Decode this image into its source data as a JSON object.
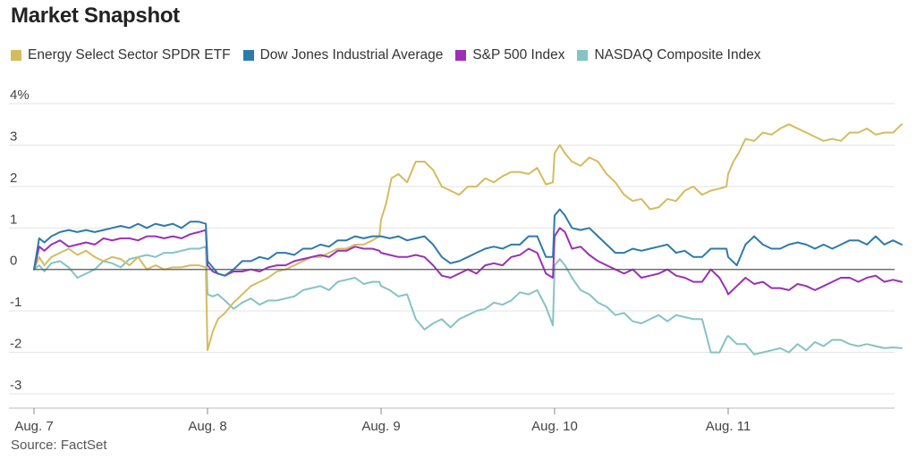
{
  "title": "Market Snapshot",
  "source": "Source: FactSet",
  "chart_data": {
    "type": "line",
    "title": "Market Snapshot",
    "xlabel": "",
    "ylabel": "",
    "ylim": [
      -3.3,
      4.2
    ],
    "y_ticks": [
      {
        "value": 4,
        "label": "4%"
      },
      {
        "value": 3,
        "label": "3"
      },
      {
        "value": 2,
        "label": "2"
      },
      {
        "value": 1,
        "label": "1"
      },
      {
        "value": 0,
        "label": "0"
      },
      {
        "value": -1,
        "label": "-1"
      },
      {
        "value": -2,
        "label": "-2"
      },
      {
        "value": -3,
        "label": "-3"
      }
    ],
    "x_ticks": [
      {
        "day": 0,
        "label": "Aug. 7"
      },
      {
        "day": 1,
        "label": "Aug. 8"
      },
      {
        "day": 2,
        "label": "Aug. 9"
      },
      {
        "day": 3,
        "label": "Aug. 10"
      },
      {
        "day": 4,
        "label": "Aug. 11"
      }
    ],
    "x_range": [
      0,
      5
    ],
    "grid": true,
    "legend_position": "top",
    "series": [
      {
        "name": "Energy Select Sector SPDR ETF",
        "color": "#d4bc5e",
        "x": [
          0,
          0.03,
          0.06,
          0.1,
          0.15,
          0.2,
          0.25,
          0.3,
          0.35,
          0.4,
          0.45,
          0.5,
          0.55,
          0.6,
          0.65,
          0.7,
          0.75,
          0.8,
          0.85,
          0.9,
          0.95,
          0.99,
          1.0,
          1.03,
          1.06,
          1.1,
          1.15,
          1.2,
          1.25,
          1.3,
          1.35,
          1.4,
          1.45,
          1.5,
          1.55,
          1.6,
          1.65,
          1.7,
          1.75,
          1.8,
          1.85,
          1.9,
          1.95,
          1.99,
          2.0,
          2.03,
          2.06,
          2.1,
          2.15,
          2.2,
          2.25,
          2.3,
          2.35,
          2.4,
          2.45,
          2.5,
          2.55,
          2.6,
          2.65,
          2.7,
          2.75,
          2.8,
          2.85,
          2.9,
          2.95,
          2.99,
          3.0,
          3.03,
          3.06,
          3.1,
          3.15,
          3.2,
          3.25,
          3.3,
          3.35,
          3.4,
          3.45,
          3.5,
          3.55,
          3.6,
          3.65,
          3.7,
          3.75,
          3.8,
          3.85,
          3.9,
          3.95,
          3.99,
          4.0,
          4.03,
          4.06,
          4.1,
          4.15,
          4.2,
          4.25,
          4.3,
          4.35,
          4.4,
          4.45,
          4.5,
          4.55,
          4.6,
          4.65,
          4.7,
          4.75,
          4.8,
          4.85,
          4.9,
          4.95,
          5.0
        ],
        "values": [
          0,
          0.3,
          0.1,
          0.3,
          0.4,
          0.5,
          0.35,
          0.45,
          0.3,
          0.2,
          0.3,
          0.25,
          0.1,
          0.3,
          0.0,
          0.1,
          0.0,
          0.05,
          0.05,
          0.1,
          0.1,
          0.05,
          -1.95,
          -1.5,
          -1.2,
          -1.05,
          -0.8,
          -0.6,
          -0.4,
          -0.3,
          -0.2,
          -0.05,
          0.0,
          0.1,
          0.2,
          0.3,
          0.3,
          0.4,
          0.5,
          0.5,
          0.6,
          0.6,
          0.7,
          0.8,
          1.2,
          1.6,
          2.2,
          2.3,
          2.1,
          2.6,
          2.6,
          2.4,
          2.0,
          1.9,
          1.8,
          2.0,
          2.0,
          2.2,
          2.1,
          2.25,
          2.35,
          2.35,
          2.3,
          2.45,
          2.05,
          2.1,
          2.8,
          3.0,
          2.8,
          2.6,
          2.5,
          2.7,
          2.6,
          2.3,
          2.1,
          1.8,
          1.65,
          1.7,
          1.45,
          1.5,
          1.7,
          1.65,
          1.9,
          2.0,
          1.8,
          1.9,
          1.95,
          2.0,
          2.3,
          2.6,
          2.8,
          3.15,
          3.1,
          3.3,
          3.25,
          3.4,
          3.5,
          3.4,
          3.3,
          3.2,
          3.1,
          3.15,
          3.1,
          3.3,
          3.3,
          3.4,
          3.25,
          3.3,
          3.3,
          3.5
        ]
      },
      {
        "name": "Dow Jones Industrial Average",
        "color": "#2e7aaa",
        "x": [
          0,
          0.03,
          0.06,
          0.1,
          0.15,
          0.2,
          0.25,
          0.3,
          0.35,
          0.4,
          0.45,
          0.5,
          0.55,
          0.6,
          0.65,
          0.7,
          0.75,
          0.8,
          0.85,
          0.9,
          0.95,
          0.99,
          1.0,
          1.03,
          1.06,
          1.1,
          1.15,
          1.2,
          1.25,
          1.3,
          1.35,
          1.4,
          1.45,
          1.5,
          1.55,
          1.6,
          1.65,
          1.7,
          1.75,
          1.8,
          1.85,
          1.9,
          1.95,
          1.99,
          2.0,
          2.05,
          2.1,
          2.15,
          2.2,
          2.25,
          2.3,
          2.35,
          2.4,
          2.45,
          2.5,
          2.55,
          2.6,
          2.65,
          2.7,
          2.75,
          2.8,
          2.85,
          2.9,
          2.95,
          2.99,
          3.0,
          3.03,
          3.06,
          3.1,
          3.15,
          3.2,
          3.25,
          3.3,
          3.35,
          3.4,
          3.45,
          3.5,
          3.55,
          3.6,
          3.65,
          3.7,
          3.75,
          3.8,
          3.85,
          3.9,
          3.95,
          3.99,
          4.0,
          4.05,
          4.1,
          4.15,
          4.2,
          4.25,
          4.3,
          4.35,
          4.4,
          4.45,
          4.5,
          4.55,
          4.6,
          4.65,
          4.7,
          4.75,
          4.8,
          4.85,
          4.9,
          4.95,
          5.0
        ],
        "values": [
          0,
          0.75,
          0.65,
          0.8,
          0.9,
          0.95,
          0.9,
          0.95,
          0.9,
          0.95,
          1.0,
          1.05,
          1.0,
          1.1,
          1.0,
          1.1,
          1.05,
          1.1,
          1.0,
          1.15,
          1.15,
          1.1,
          0.2,
          0.05,
          -0.1,
          -0.15,
          0.0,
          0.2,
          0.2,
          0.3,
          0.25,
          0.4,
          0.4,
          0.35,
          0.5,
          0.5,
          0.6,
          0.55,
          0.7,
          0.7,
          0.8,
          0.75,
          0.8,
          0.8,
          0.8,
          0.75,
          0.8,
          0.7,
          0.75,
          0.8,
          0.6,
          0.3,
          0.15,
          0.2,
          0.3,
          0.4,
          0.5,
          0.55,
          0.5,
          0.6,
          0.6,
          0.8,
          0.8,
          0.3,
          0.3,
          1.3,
          1.45,
          1.3,
          1.0,
          0.95,
          1.0,
          0.8,
          0.6,
          0.4,
          0.4,
          0.5,
          0.45,
          0.5,
          0.55,
          0.6,
          0.4,
          0.45,
          0.3,
          0.3,
          0.5,
          0.5,
          0.5,
          0.3,
          0.1,
          0.6,
          0.8,
          0.6,
          0.5,
          0.5,
          0.6,
          0.65,
          0.6,
          0.5,
          0.6,
          0.5,
          0.6,
          0.7,
          0.7,
          0.6,
          0.8,
          0.6,
          0.7,
          0.6
        ]
      },
      {
        "name": "S&P 500 Index",
        "color": "#9b30b5",
        "x": [
          0,
          0.03,
          0.06,
          0.1,
          0.15,
          0.2,
          0.25,
          0.3,
          0.35,
          0.4,
          0.45,
          0.5,
          0.55,
          0.6,
          0.65,
          0.7,
          0.75,
          0.8,
          0.85,
          0.9,
          0.95,
          0.99,
          1.0,
          1.03,
          1.06,
          1.1,
          1.15,
          1.2,
          1.25,
          1.3,
          1.35,
          1.4,
          1.45,
          1.5,
          1.55,
          1.6,
          1.65,
          1.7,
          1.75,
          1.8,
          1.85,
          1.9,
          1.95,
          1.99,
          2.0,
          2.05,
          2.1,
          2.15,
          2.2,
          2.25,
          2.3,
          2.35,
          2.4,
          2.45,
          2.5,
          2.55,
          2.6,
          2.65,
          2.7,
          2.75,
          2.8,
          2.85,
          2.9,
          2.95,
          2.99,
          3.0,
          3.03,
          3.06,
          3.1,
          3.15,
          3.2,
          3.25,
          3.3,
          3.35,
          3.4,
          3.45,
          3.5,
          3.55,
          3.6,
          3.65,
          3.7,
          3.75,
          3.8,
          3.85,
          3.9,
          3.95,
          3.99,
          4.0,
          4.05,
          4.1,
          4.15,
          4.2,
          4.25,
          4.3,
          4.35,
          4.4,
          4.45,
          4.5,
          4.55,
          4.6,
          4.65,
          4.7,
          4.75,
          4.8,
          4.85,
          4.9,
          4.95,
          5.0
        ],
        "values": [
          0,
          0.55,
          0.45,
          0.6,
          0.7,
          0.55,
          0.6,
          0.65,
          0.6,
          0.75,
          0.7,
          0.75,
          0.75,
          0.7,
          0.8,
          0.8,
          0.75,
          0.8,
          0.75,
          0.85,
          0.9,
          0.95,
          0.1,
          -0.05,
          -0.1,
          -0.15,
          -0.05,
          -0.05,
          0.0,
          -0.05,
          0.05,
          0.1,
          0.1,
          0.2,
          0.25,
          0.3,
          0.35,
          0.3,
          0.45,
          0.45,
          0.55,
          0.5,
          0.5,
          0.45,
          0.4,
          0.35,
          0.3,
          0.3,
          0.35,
          0.3,
          0.1,
          -0.15,
          -0.2,
          -0.1,
          0.0,
          -0.1,
          0.1,
          0.15,
          0.1,
          0.3,
          0.35,
          0.5,
          0.4,
          -0.1,
          -0.2,
          0.8,
          1.0,
          0.9,
          0.5,
          0.55,
          0.35,
          0.2,
          0.1,
          0.0,
          -0.1,
          0.0,
          -0.2,
          -0.15,
          -0.1,
          0.0,
          -0.15,
          -0.2,
          -0.3,
          -0.3,
          0.0,
          -0.2,
          -0.5,
          -0.6,
          -0.4,
          -0.2,
          -0.35,
          -0.3,
          -0.45,
          -0.45,
          -0.5,
          -0.35,
          -0.4,
          -0.5,
          -0.4,
          -0.3,
          -0.2,
          -0.2,
          -0.3,
          -0.2,
          -0.15,
          -0.3,
          -0.25,
          -0.3
        ]
      },
      {
        "name": "NASDAQ Composite Index",
        "color": "#84c4c4",
        "x": [
          0,
          0.03,
          0.06,
          0.1,
          0.15,
          0.2,
          0.25,
          0.3,
          0.35,
          0.4,
          0.45,
          0.5,
          0.55,
          0.6,
          0.65,
          0.7,
          0.75,
          0.8,
          0.85,
          0.9,
          0.95,
          0.99,
          1.0,
          1.03,
          1.06,
          1.1,
          1.15,
          1.2,
          1.25,
          1.3,
          1.35,
          1.4,
          1.45,
          1.5,
          1.55,
          1.6,
          1.65,
          1.7,
          1.75,
          1.8,
          1.85,
          1.9,
          1.95,
          1.99,
          2.0,
          2.05,
          2.1,
          2.15,
          2.2,
          2.25,
          2.3,
          2.35,
          2.4,
          2.45,
          2.5,
          2.55,
          2.6,
          2.65,
          2.7,
          2.75,
          2.8,
          2.85,
          2.9,
          2.95,
          2.99,
          3.0,
          3.03,
          3.06,
          3.1,
          3.15,
          3.2,
          3.25,
          3.3,
          3.35,
          3.4,
          3.45,
          3.5,
          3.55,
          3.6,
          3.65,
          3.7,
          3.75,
          3.8,
          3.85,
          3.9,
          3.95,
          3.99,
          4.0,
          4.05,
          4.1,
          4.15,
          4.2,
          4.25,
          4.3,
          4.35,
          4.4,
          4.45,
          4.5,
          4.55,
          4.6,
          4.65,
          4.7,
          4.75,
          4.8,
          4.85,
          4.9,
          4.95,
          5.0
        ],
        "values": [
          0,
          0.1,
          -0.05,
          0.15,
          0.2,
          0.05,
          -0.2,
          -0.1,
          0.0,
          0.2,
          0.15,
          0.05,
          0.25,
          0.3,
          0.35,
          0.3,
          0.4,
          0.4,
          0.45,
          0.5,
          0.5,
          0.55,
          -0.6,
          -0.65,
          -0.6,
          -0.75,
          -0.95,
          -0.8,
          -0.7,
          -0.85,
          -0.75,
          -0.75,
          -0.7,
          -0.65,
          -0.5,
          -0.45,
          -0.4,
          -0.5,
          -0.3,
          -0.25,
          -0.2,
          -0.35,
          -0.3,
          -0.3,
          -0.4,
          -0.5,
          -0.65,
          -0.6,
          -1.2,
          -1.45,
          -1.3,
          -1.2,
          -1.4,
          -1.2,
          -1.1,
          -1.0,
          -0.95,
          -0.8,
          -0.85,
          -0.75,
          -0.55,
          -0.6,
          -0.5,
          -0.9,
          -1.35,
          0.1,
          0.25,
          0.1,
          -0.2,
          -0.5,
          -0.6,
          -0.8,
          -0.9,
          -1.1,
          -1.05,
          -1.25,
          -1.3,
          -1.2,
          -1.1,
          -1.25,
          -1.1,
          -1.15,
          -1.2,
          -1.2,
          -2.0,
          -2.0,
          -1.65,
          -1.6,
          -1.8,
          -1.8,
          -2.05,
          -2.0,
          -1.95,
          -1.9,
          -2.0,
          -1.8,
          -1.95,
          -1.75,
          -1.85,
          -1.7,
          -1.7,
          -1.8,
          -1.85,
          -1.8,
          -1.85,
          -1.9,
          -1.88,
          -1.9
        ]
      }
    ]
  }
}
